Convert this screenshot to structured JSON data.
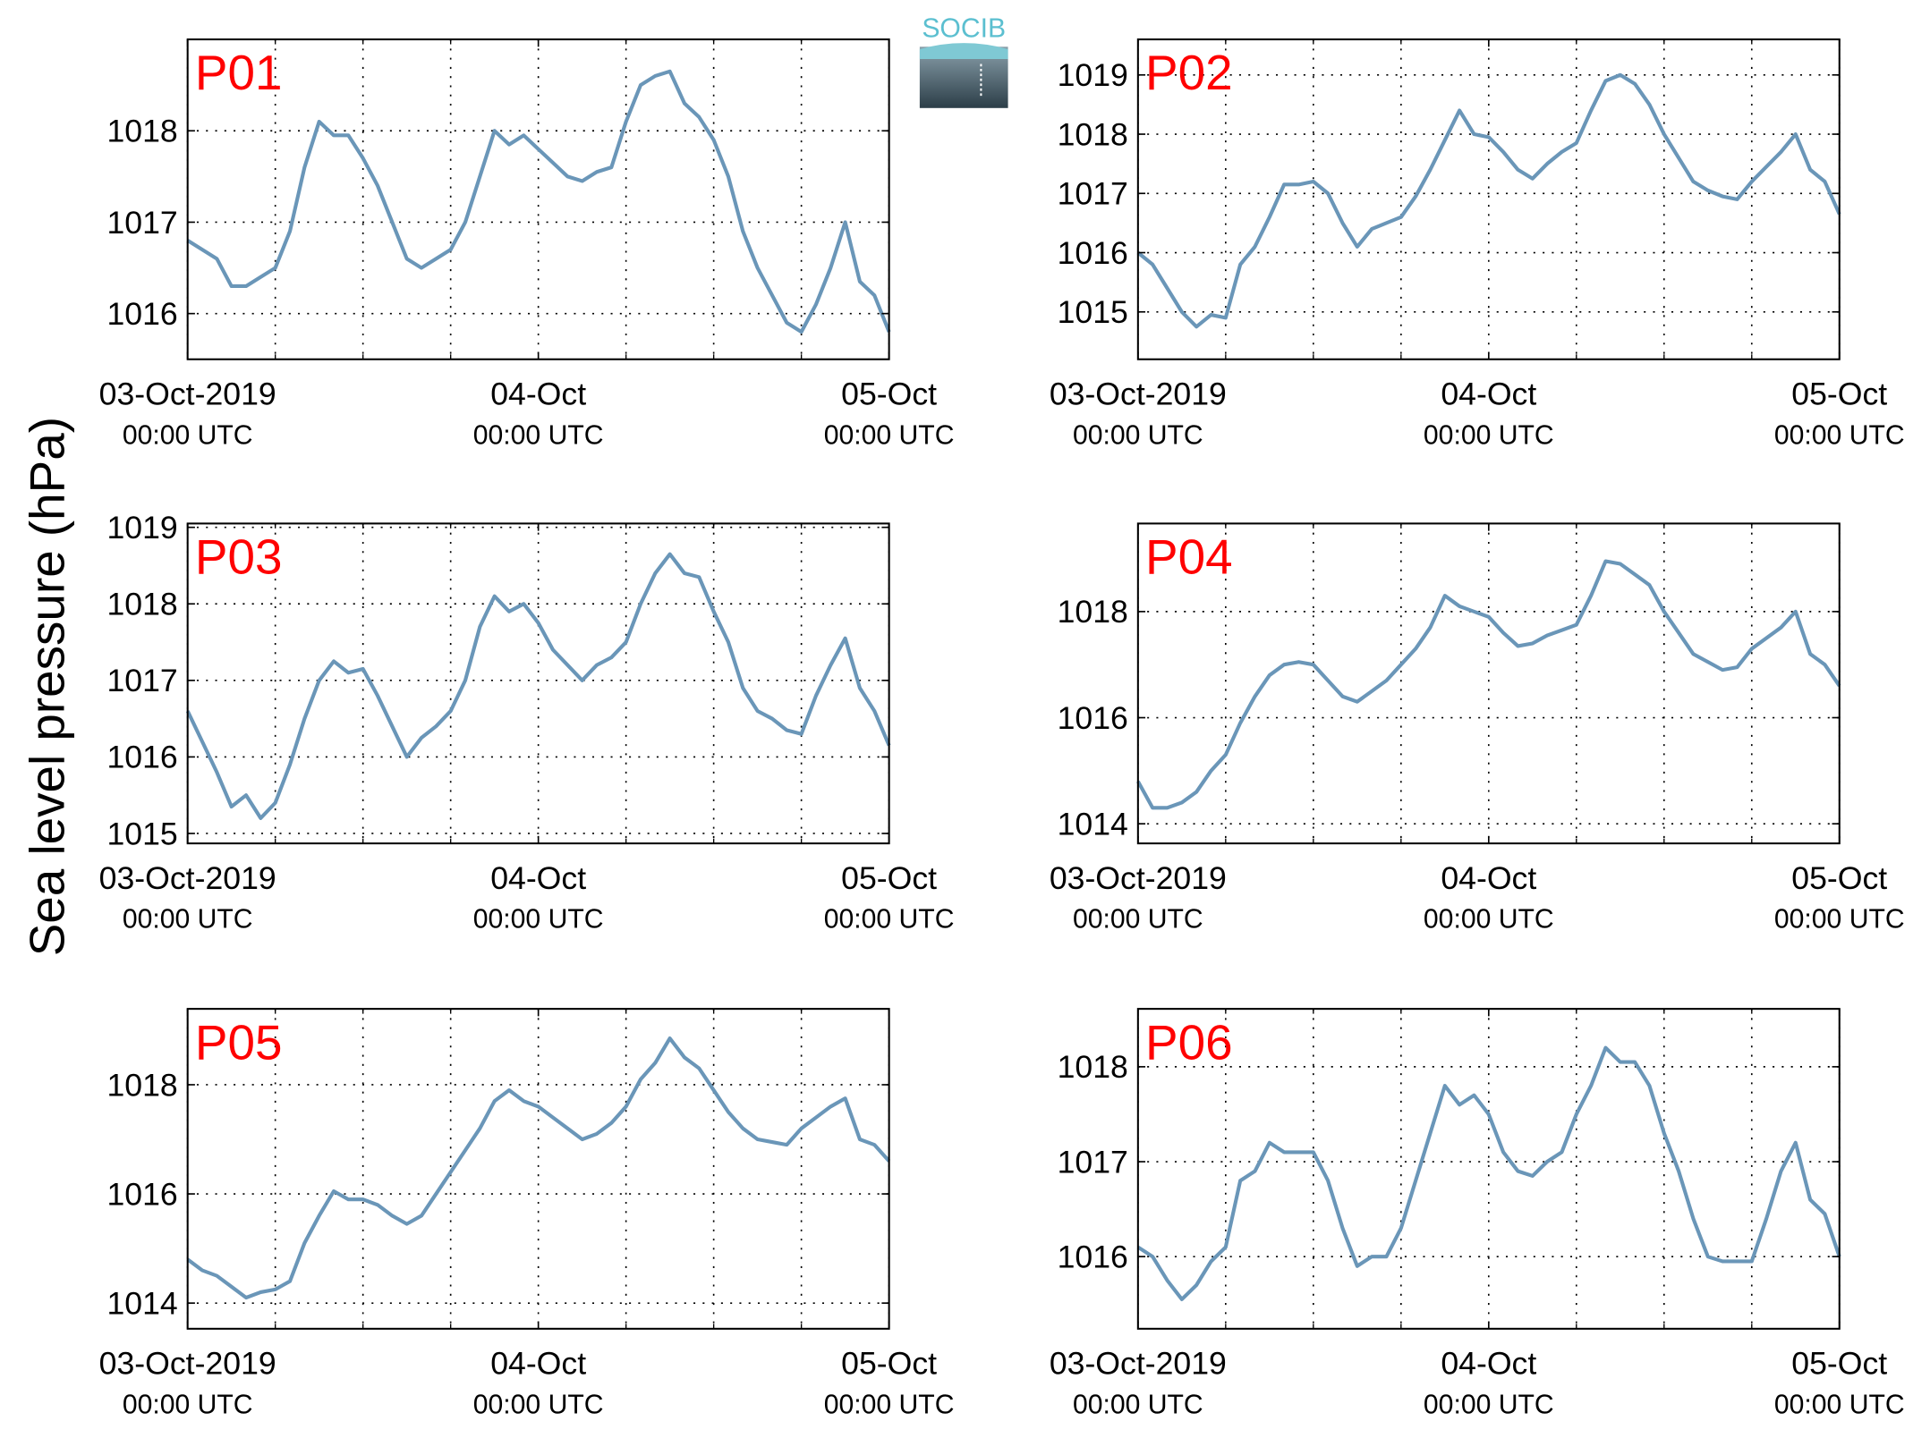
{
  "ylabel": "Sea level pressure (hPa)",
  "logo": "SOCIB",
  "chart_data": [
    {
      "type": "line",
      "title": "P01",
      "x": [
        0,
        1,
        2,
        3,
        4,
        5,
        6,
        7,
        8,
        9,
        10,
        11,
        12,
        13,
        14,
        15,
        16,
        17,
        18,
        19,
        20,
        21,
        22,
        23,
        24,
        25,
        26,
        27,
        28,
        29,
        30,
        31,
        32,
        33,
        34,
        35,
        36,
        37,
        38,
        39,
        40,
        41,
        42,
        43,
        44,
        45,
        46,
        47,
        48
      ],
      "series": [
        {
          "color": "#6a96b8",
          "values": [
            1016.8,
            1016.7,
            1016.6,
            1016.3,
            1016.3,
            1016.4,
            1016.5,
            1016.9,
            1017.6,
            1018.1,
            1017.95,
            1017.95,
            1017.7,
            1017.4,
            1017.0,
            1016.6,
            1016.5,
            1016.6,
            1016.7,
            1017.0,
            1017.5,
            1018.0,
            1017.85,
            1017.95,
            1017.8,
            1017.65,
            1017.5,
            1017.45,
            1017.55,
            1017.6,
            1018.1,
            1018.5,
            1018.6,
            1018.65,
            1018.3,
            1018.15,
            1017.9,
            1017.5,
            1016.9,
            1016.5,
            1016.2,
            1015.9,
            1015.8,
            1016.1,
            1016.5,
            1017.0,
            1016.35,
            1016.2,
            1015.8
          ]
        }
      ],
      "xlim": [
        0,
        48
      ],
      "xticks": [
        {
          "value": 0,
          "label": [
            "03-Oct-2019",
            "00:00 UTC"
          ]
        },
        {
          "value": 24,
          "label": [
            "04-Oct",
            "00:00 UTC"
          ]
        },
        {
          "value": 48,
          "label": [
            "05-Oct",
            "00:00 UTC"
          ]
        }
      ],
      "xminorticks": [
        6,
        12,
        18,
        30,
        36,
        42
      ],
      "ylim": [
        1015.5,
        1019
      ],
      "yticks": [
        1016,
        1017,
        1018
      ],
      "grid": true
    },
    {
      "type": "line",
      "title": "P02",
      "x": [
        0,
        1,
        2,
        3,
        4,
        5,
        6,
        7,
        8,
        9,
        10,
        11,
        12,
        13,
        14,
        15,
        16,
        17,
        18,
        19,
        20,
        21,
        22,
        23,
        24,
        25,
        26,
        27,
        28,
        29,
        30,
        31,
        32,
        33,
        34,
        35,
        36,
        37,
        38,
        39,
        40,
        41,
        42,
        43,
        44,
        45,
        46,
        47,
        48
      ],
      "series": [
        {
          "color": "#6a96b8",
          "values": [
            1016.0,
            1015.8,
            1015.4,
            1015.0,
            1014.75,
            1014.95,
            1014.9,
            1015.8,
            1016.1,
            1016.6,
            1017.15,
            1017.15,
            1017.2,
            1017.0,
            1016.5,
            1016.1,
            1016.4,
            1016.5,
            1016.6,
            1016.95,
            1017.4,
            1017.9,
            1018.4,
            1018.0,
            1017.95,
            1017.7,
            1017.4,
            1017.25,
            1017.5,
            1017.7,
            1017.85,
            1018.4,
            1018.9,
            1019.0,
            1018.85,
            1018.5,
            1018.0,
            1017.6,
            1017.2,
            1017.05,
            1016.95,
            1016.9,
            1017.2,
            1017.45,
            1017.7,
            1018.0,
            1017.4,
            1017.2,
            1016.65
          ]
        }
      ],
      "xlim": [
        0,
        48
      ],
      "xticks": [
        {
          "value": 0,
          "label": [
            "03-Oct-2019",
            "00:00 UTC"
          ]
        },
        {
          "value": 24,
          "label": [
            "04-Oct",
            "00:00 UTC"
          ]
        },
        {
          "value": 48,
          "label": [
            "05-Oct",
            "00:00 UTC"
          ]
        }
      ],
      "xminorticks": [
        6,
        12,
        18,
        30,
        36,
        42
      ],
      "ylim": [
        1014.2,
        1019.6
      ],
      "yticks": [
        1015,
        1016,
        1017,
        1018,
        1019
      ],
      "grid": true
    },
    {
      "type": "line",
      "title": "P03",
      "x": [
        0,
        1,
        2,
        3,
        4,
        5,
        6,
        7,
        8,
        9,
        10,
        11,
        12,
        13,
        14,
        15,
        16,
        17,
        18,
        19,
        20,
        21,
        22,
        23,
        24,
        25,
        26,
        27,
        28,
        29,
        30,
        31,
        32,
        33,
        34,
        35,
        36,
        37,
        38,
        39,
        40,
        41,
        42,
        43,
        44,
        45,
        46,
        47,
        48
      ],
      "series": [
        {
          "color": "#6a96b8",
          "values": [
            1016.6,
            1016.2,
            1015.8,
            1015.35,
            1015.5,
            1015.2,
            1015.4,
            1015.9,
            1016.5,
            1017.0,
            1017.25,
            1017.1,
            1017.15,
            1016.8,
            1016.4,
            1016.0,
            1016.25,
            1016.4,
            1016.6,
            1017.0,
            1017.7,
            1018.1,
            1017.9,
            1018.0,
            1017.75,
            1017.4,
            1017.2,
            1017.0,
            1017.2,
            1017.3,
            1017.5,
            1018.0,
            1018.4,
            1018.65,
            1018.4,
            1018.35,
            1017.9,
            1017.5,
            1016.9,
            1016.6,
            1016.5,
            1016.35,
            1016.3,
            1016.8,
            1017.2,
            1017.55,
            1016.9,
            1016.6,
            1016.15
          ]
        }
      ],
      "xlim": [
        0,
        48
      ],
      "xticks": [
        {
          "value": 0,
          "label": [
            "03-Oct-2019",
            "00:00 UTC"
          ]
        },
        {
          "value": 24,
          "label": [
            "04-Oct",
            "00:00 UTC"
          ]
        },
        {
          "value": 48,
          "label": [
            "05-Oct",
            "00:00 UTC"
          ]
        }
      ],
      "xminorticks": [
        6,
        12,
        18,
        30,
        36,
        42
      ],
      "ylim": [
        1014.87,
        1019.05
      ],
      "yticks": [
        1015,
        1016,
        1017,
        1018,
        1019
      ],
      "grid": true
    },
    {
      "type": "line",
      "title": "P04",
      "x": [
        0,
        1,
        2,
        3,
        4,
        5,
        6,
        7,
        8,
        9,
        10,
        11,
        12,
        13,
        14,
        15,
        16,
        17,
        18,
        19,
        20,
        21,
        22,
        23,
        24,
        25,
        26,
        27,
        28,
        29,
        30,
        31,
        32,
        33,
        34,
        35,
        36,
        37,
        38,
        39,
        40,
        41,
        42,
        43,
        44,
        45,
        46,
        47,
        48
      ],
      "series": [
        {
          "color": "#6a96b8",
          "values": [
            1014.8,
            1014.3,
            1014.3,
            1014.4,
            1014.6,
            1015.0,
            1015.3,
            1015.9,
            1016.4,
            1016.8,
            1017.0,
            1017.05,
            1017.0,
            1016.7,
            1016.4,
            1016.3,
            1016.5,
            1016.7,
            1017.0,
            1017.3,
            1017.7,
            1018.3,
            1018.1,
            1018.0,
            1017.9,
            1017.6,
            1017.35,
            1017.4,
            1017.55,
            1017.65,
            1017.75,
            1018.3,
            1018.95,
            1018.9,
            1018.7,
            1018.5,
            1018.0,
            1017.6,
            1017.2,
            1017.05,
            1016.9,
            1016.95,
            1017.3,
            1017.5,
            1017.7,
            1018.0,
            1017.2,
            1017.0,
            1016.6
          ]
        }
      ],
      "xlim": [
        0,
        48
      ],
      "xticks": [
        {
          "value": 0,
          "label": [
            "03-Oct-2019",
            "00:00 UTC"
          ]
        },
        {
          "value": 24,
          "label": [
            "04-Oct",
            "00:00 UTC"
          ]
        },
        {
          "value": 48,
          "label": [
            "05-Oct",
            "00:00 UTC"
          ]
        }
      ],
      "xminorticks": [
        6,
        12,
        18,
        30,
        36,
        42
      ],
      "ylim": [
        1013.63,
        1019.66
      ],
      "yticks": [
        1014,
        1016,
        1018
      ],
      "grid": true
    },
    {
      "type": "line",
      "title": "P05",
      "x": [
        0,
        1,
        2,
        3,
        4,
        5,
        6,
        7,
        8,
        9,
        10,
        11,
        12,
        13,
        14,
        15,
        16,
        17,
        18,
        19,
        20,
        21,
        22,
        23,
        24,
        25,
        26,
        27,
        28,
        29,
        30,
        31,
        32,
        33,
        34,
        35,
        36,
        37,
        38,
        39,
        40,
        41,
        42,
        43,
        44,
        45,
        46,
        47,
        48
      ],
      "series": [
        {
          "color": "#6a96b8",
          "values": [
            1014.8,
            1014.6,
            1014.5,
            1014.3,
            1014.1,
            1014.2,
            1014.25,
            1014.4,
            1015.1,
            1015.6,
            1016.05,
            1015.9,
            1015.9,
            1015.8,
            1015.6,
            1015.45,
            1015.6,
            1016.0,
            1016.4,
            1016.8,
            1017.2,
            1017.7,
            1017.9,
            1017.7,
            1017.6,
            1017.4,
            1017.2,
            1017.0,
            1017.1,
            1017.3,
            1017.6,
            1018.1,
            1018.4,
            1018.85,
            1018.5,
            1018.3,
            1017.9,
            1017.5,
            1017.2,
            1017.0,
            1016.95,
            1016.9,
            1017.2,
            1017.4,
            1017.6,
            1017.75,
            1017.0,
            1016.9,
            1016.6
          ]
        }
      ],
      "xlim": [
        0,
        48
      ],
      "xticks": [
        {
          "value": 0,
          "label": [
            "03-Oct-2019",
            "00:00 UTC"
          ]
        },
        {
          "value": 24,
          "label": [
            "04-Oct",
            "00:00 UTC"
          ]
        },
        {
          "value": 48,
          "label": [
            "05-Oct",
            "00:00 UTC"
          ]
        }
      ],
      "xminorticks": [
        6,
        12,
        18,
        30,
        36,
        42
      ],
      "ylim": [
        1013.53,
        1019.39
      ],
      "yticks": [
        1014,
        1016,
        1018
      ],
      "grid": true
    },
    {
      "type": "line",
      "title": "P06",
      "x": [
        0,
        1,
        2,
        3,
        4,
        5,
        6,
        7,
        8,
        9,
        10,
        11,
        12,
        13,
        14,
        15,
        16,
        17,
        18,
        19,
        20,
        21,
        22,
        23,
        24,
        25,
        26,
        27,
        28,
        29,
        30,
        31,
        32,
        33,
        34,
        35,
        36,
        37,
        38,
        39,
        40,
        41,
        42,
        43,
        44,
        45,
        46,
        47,
        48
      ],
      "series": [
        {
          "color": "#6a96b8",
          "values": [
            1016.1,
            1016.0,
            1015.75,
            1015.55,
            1015.7,
            1015.95,
            1016.1,
            1016.8,
            1016.9,
            1017.2,
            1017.1,
            1017.1,
            1017.1,
            1016.8,
            1016.3,
            1015.9,
            1016.0,
            1016.0,
            1016.3,
            1016.8,
            1017.3,
            1017.8,
            1017.6,
            1017.7,
            1017.5,
            1017.1,
            1016.9,
            1016.85,
            1017.0,
            1017.1,
            1017.5,
            1017.8,
            1018.2,
            1018.05,
            1018.05,
            1017.8,
            1017.3,
            1016.9,
            1016.4,
            1016.0,
            1015.95,
            1015.95,
            1015.95,
            1016.4,
            1016.9,
            1017.2,
            1016.6,
            1016.45,
            1016.0
          ]
        }
      ],
      "xlim": [
        0,
        48
      ],
      "xticks": [
        {
          "value": 0,
          "label": [
            "03-Oct-2019",
            "00:00 UTC"
          ]
        },
        {
          "value": 24,
          "label": [
            "04-Oct",
            "00:00 UTC"
          ]
        },
        {
          "value": 48,
          "label": [
            "05-Oct",
            "00:00 UTC"
          ]
        }
      ],
      "xminorticks": [
        6,
        12,
        18,
        30,
        36,
        42
      ],
      "ylim": [
        1015.24,
        1018.61
      ],
      "yticks": [
        1016,
        1017,
        1018
      ],
      "grid": true
    }
  ]
}
